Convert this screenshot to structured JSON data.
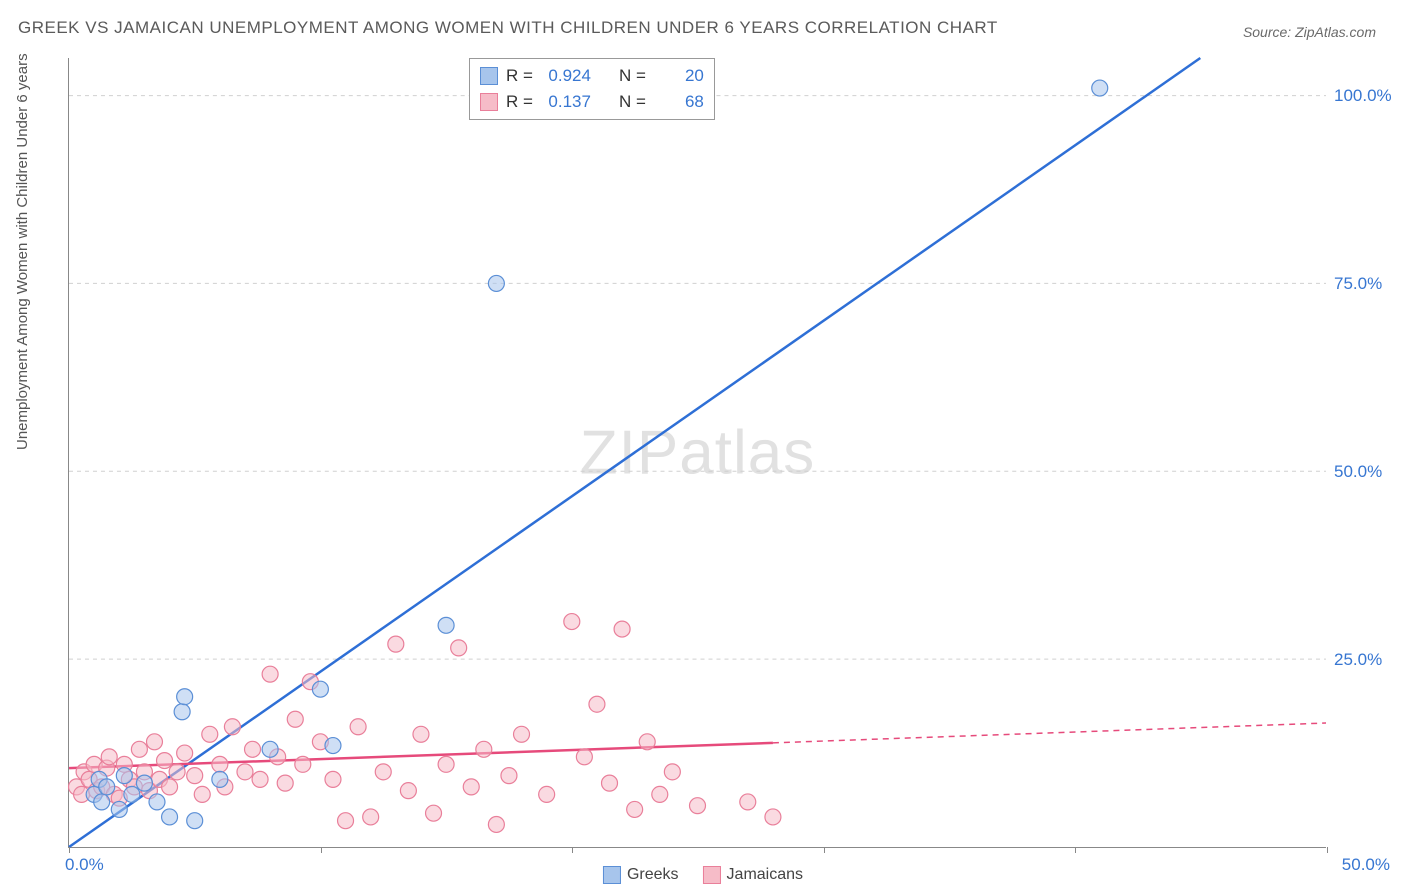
{
  "title": "GREEK VS JAMAICAN UNEMPLOYMENT AMONG WOMEN WITH CHILDREN UNDER 6 YEARS CORRELATION CHART",
  "source": "Source: ZipAtlas.com",
  "y_axis_label": "Unemployment Among Women with Children Under 6 years",
  "watermark_zip": "ZIP",
  "watermark_atlas": "atlas",
  "chart": {
    "type": "scatter",
    "xlim": [
      0,
      50
    ],
    "ylim": [
      0,
      105
    ],
    "x_tick_positions": [
      0,
      10,
      20,
      30,
      40,
      50
    ],
    "x_tick_labels": {
      "0": "0.0%",
      "50": "50.0%"
    },
    "y_ticks": [
      25,
      50,
      75,
      100
    ],
    "y_tick_labels": [
      "25.0%",
      "50.0%",
      "75.0%",
      "100.0%"
    ],
    "grid_color": "#d0d0d0",
    "background_color": "#ffffff",
    "axis_color": "#888888",
    "tick_label_color": "#3776d1",
    "series": [
      {
        "name": "Greeks",
        "color_fill": "#a7c5ec",
        "color_stroke": "#5b8fd6",
        "line_color": "#2e6fd6",
        "line_width": 2.5,
        "marker_radius": 8,
        "marker_opacity": 0.55,
        "R": "0.924",
        "N": "20",
        "trend": {
          "x1": 0,
          "y1": 0,
          "x2": 45,
          "y2": 105,
          "solid_until_x": 45
        },
        "points": [
          [
            1.0,
            7.0
          ],
          [
            1.2,
            9.0
          ],
          [
            1.3,
            6.0
          ],
          [
            1.5,
            8.0
          ],
          [
            2.0,
            5.0
          ],
          [
            2.2,
            9.5
          ],
          [
            2.5,
            7.0
          ],
          [
            3.0,
            8.5
          ],
          [
            3.5,
            6.0
          ],
          [
            4.0,
            4.0
          ],
          [
            4.5,
            18.0
          ],
          [
            4.6,
            20.0
          ],
          [
            5.0,
            3.5
          ],
          [
            6.0,
            9.0
          ],
          [
            8.0,
            13.0
          ],
          [
            10.0,
            21.0
          ],
          [
            10.5,
            13.5
          ],
          [
            15.0,
            29.5
          ],
          [
            17.0,
            75.0
          ],
          [
            41.0,
            101.0
          ]
        ]
      },
      {
        "name": "Jamaicans",
        "color_fill": "#f6bcc8",
        "color_stroke": "#e97f9a",
        "line_color": "#e64a7b",
        "line_width": 2.5,
        "marker_radius": 8,
        "marker_opacity": 0.55,
        "R": "0.137",
        "N": "68",
        "trend": {
          "x1": 0,
          "y1": 10.5,
          "x2": 50,
          "y2": 16.5,
          "solid_until_x": 28
        },
        "points": [
          [
            0.3,
            8.0
          ],
          [
            0.5,
            7.0
          ],
          [
            0.6,
            10.0
          ],
          [
            0.8,
            9.0
          ],
          [
            1.0,
            11.0
          ],
          [
            1.1,
            7.5
          ],
          [
            1.3,
            8.0
          ],
          [
            1.5,
            10.5
          ],
          [
            1.6,
            12.0
          ],
          [
            1.8,
            7.0
          ],
          [
            2.0,
            6.5
          ],
          [
            2.2,
            11.0
          ],
          [
            2.4,
            9.0
          ],
          [
            2.6,
            8.0
          ],
          [
            2.8,
            13.0
          ],
          [
            3.0,
            10.0
          ],
          [
            3.2,
            7.5
          ],
          [
            3.4,
            14.0
          ],
          [
            3.6,
            9.0
          ],
          [
            3.8,
            11.5
          ],
          [
            4.0,
            8.0
          ],
          [
            4.3,
            10.0
          ],
          [
            4.6,
            12.5
          ],
          [
            5.0,
            9.5
          ],
          [
            5.3,
            7.0
          ],
          [
            5.6,
            15.0
          ],
          [
            6.0,
            11.0
          ],
          [
            6.2,
            8.0
          ],
          [
            6.5,
            16.0
          ],
          [
            7.0,
            10.0
          ],
          [
            7.3,
            13.0
          ],
          [
            7.6,
            9.0
          ],
          [
            8.0,
            23.0
          ],
          [
            8.3,
            12.0
          ],
          [
            8.6,
            8.5
          ],
          [
            9.0,
            17.0
          ],
          [
            9.3,
            11.0
          ],
          [
            9.6,
            22.0
          ],
          [
            10.0,
            14.0
          ],
          [
            10.5,
            9.0
          ],
          [
            11.0,
            3.5
          ],
          [
            11.5,
            16.0
          ],
          [
            12.0,
            4.0
          ],
          [
            12.5,
            10.0
          ],
          [
            13.0,
            27.0
          ],
          [
            13.5,
            7.5
          ],
          [
            14.0,
            15.0
          ],
          [
            14.5,
            4.5
          ],
          [
            15.0,
            11.0
          ],
          [
            15.5,
            26.5
          ],
          [
            16.0,
            8.0
          ],
          [
            16.5,
            13.0
          ],
          [
            17.0,
            3.0
          ],
          [
            17.5,
            9.5
          ],
          [
            18.0,
            15.0
          ],
          [
            19.0,
            7.0
          ],
          [
            20.0,
            30.0
          ],
          [
            20.5,
            12.0
          ],
          [
            21.0,
            19.0
          ],
          [
            21.5,
            8.5
          ],
          [
            22.0,
            29.0
          ],
          [
            22.5,
            5.0
          ],
          [
            23.0,
            14.0
          ],
          [
            23.5,
            7.0
          ],
          [
            24.0,
            10.0
          ],
          [
            25.0,
            5.5
          ],
          [
            27.0,
            6.0
          ],
          [
            28.0,
            4.0
          ]
        ]
      }
    ]
  },
  "stats_box": {
    "rows": [
      {
        "swatch_fill": "#a7c5ec",
        "swatch_stroke": "#5b8fd6",
        "r_label": "R =",
        "r_val": "0.924",
        "n_label": "N =",
        "n_val": "20"
      },
      {
        "swatch_fill": "#f6bcc8",
        "swatch_stroke": "#e97f9a",
        "r_label": "R =",
        "r_val": "0.137",
        "n_label": "N =",
        "n_val": "68"
      }
    ]
  },
  "legend": [
    {
      "swatch_fill": "#a7c5ec",
      "swatch_stroke": "#5b8fd6",
      "label": "Greeks"
    },
    {
      "swatch_fill": "#f6bcc8",
      "swatch_stroke": "#e97f9a",
      "label": "Jamaicans"
    }
  ]
}
